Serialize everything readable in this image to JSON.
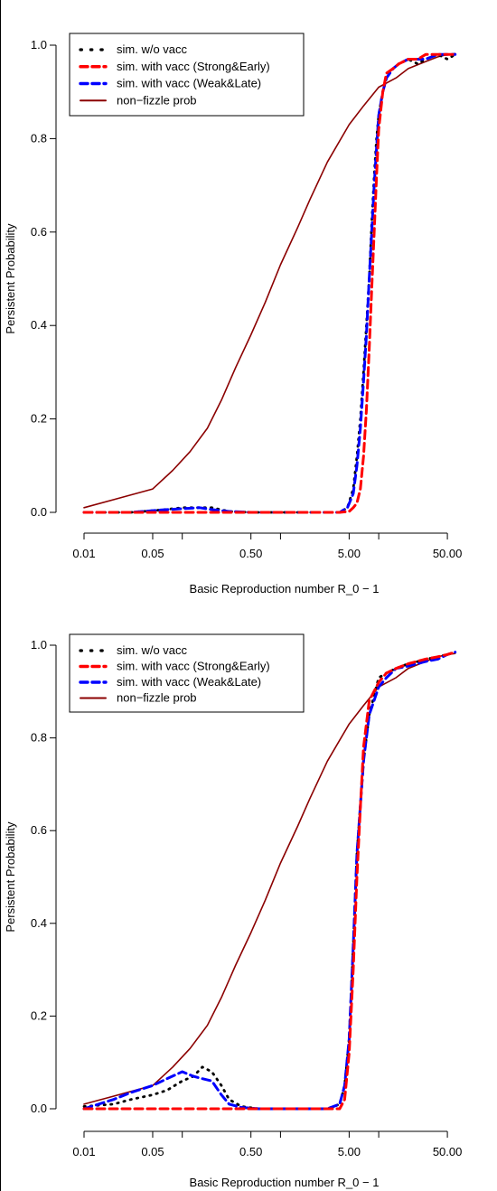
{
  "chart_data": [
    {
      "type": "line",
      "title": "",
      "xlabel": "Basic Reproduction number R_0 − 1",
      "ylabel": "Persistent Probability",
      "xscale": "log",
      "xlim": [
        0.01,
        65
      ],
      "ylim": [
        0,
        1
      ],
      "xticks": [
        0.01,
        0.05,
        0.5,
        5,
        50
      ],
      "xtick_labels": [
        "0.01",
        "0.05",
        "0.50",
        "5.00",
        "50.00"
      ],
      "yticks": [
        0,
        0.2,
        0.4,
        0.6,
        0.8,
        1.0
      ],
      "ytick_labels": [
        "0.0",
        "0.2",
        "0.4",
        "0.6",
        "0.8",
        "1.0"
      ],
      "legend_position": "top-left",
      "series": [
        {
          "name": "sim. w/o vacc",
          "style": "dotted",
          "color": "#000000",
          "x": [
            0.01,
            0.03,
            0.06,
            0.1,
            0.15,
            0.2,
            0.3,
            0.5,
            1,
            2,
            3,
            4,
            4.8,
            5.5,
            6,
            6.5,
            7,
            7.5,
            8,
            8.5,
            9,
            9.5,
            10,
            11,
            12,
            14,
            16,
            20,
            25,
            30,
            40,
            50,
            60
          ],
          "y": [
            0,
            0,
            0.005,
            0.01,
            0.01,
            0.01,
            0.002,
            0,
            0,
            0,
            0,
            0,
            0.01,
            0.05,
            0.12,
            0.2,
            0.3,
            0.4,
            0.5,
            0.62,
            0.72,
            0.8,
            0.85,
            0.9,
            0.93,
            0.95,
            0.96,
            0.97,
            0.96,
            0.97,
            0.98,
            0.97,
            0.98
          ]
        },
        {
          "name": "sim. with vacc (Strong&Early)",
          "style": "dashed",
          "color": "#ff0000",
          "x": [
            0.01,
            0.1,
            0.5,
            1,
            2,
            3,
            4,
            5,
            5.5,
            6,
            6.5,
            7,
            7.5,
            8,
            8.5,
            9,
            9.5,
            10,
            11,
            12,
            14,
            16,
            20,
            25,
            30,
            40,
            50,
            60
          ],
          "y": [
            0,
            0,
            0,
            0,
            0,
            0,
            0,
            0.002,
            0.01,
            0.02,
            0.05,
            0.12,
            0.22,
            0.35,
            0.48,
            0.6,
            0.72,
            0.82,
            0.9,
            0.94,
            0.95,
            0.96,
            0.97,
            0.97,
            0.98,
            0.98,
            0.98,
            0.98
          ]
        },
        {
          "name": "sim. with vacc (Weak&Late)",
          "style": "dashed",
          "color": "#0000ff",
          "x": [
            0.01,
            0.03,
            0.06,
            0.1,
            0.15,
            0.2,
            0.3,
            0.5,
            1,
            2,
            3,
            4,
            4.8,
            5.5,
            6,
            6.5,
            7,
            7.5,
            8,
            8.5,
            9,
            9.5,
            10,
            11,
            12,
            14,
            16,
            20,
            25,
            30,
            40,
            50,
            60
          ],
          "y": [
            0,
            0,
            0.005,
            0.008,
            0.01,
            0.006,
            0.002,
            0,
            0,
            0,
            0,
            0,
            0.01,
            0.04,
            0.1,
            0.18,
            0.28,
            0.38,
            0.5,
            0.6,
            0.7,
            0.78,
            0.85,
            0.9,
            0.93,
            0.95,
            0.96,
            0.97,
            0.97,
            0.97,
            0.98,
            0.98,
            0.98
          ]
        },
        {
          "name": "non−fizzle prob",
          "style": "solid",
          "color": "#8b0000",
          "x": [
            0.01,
            0.05,
            0.08,
            0.12,
            0.18,
            0.25,
            0.35,
            0.5,
            0.7,
            1,
            1.5,
            2,
            3,
            5,
            7,
            10,
            15,
            20,
            30,
            40,
            50,
            60
          ],
          "y": [
            0.01,
            0.05,
            0.09,
            0.13,
            0.18,
            0.24,
            0.31,
            0.38,
            0.45,
            0.53,
            0.61,
            0.67,
            0.75,
            0.83,
            0.87,
            0.91,
            0.93,
            0.95,
            0.965,
            0.975,
            0.98,
            0.982
          ]
        }
      ]
    },
    {
      "type": "line",
      "title": "",
      "xlabel": "Basic Reproduction number R_0 − 1",
      "ylabel": "Persistent Probability",
      "xscale": "log",
      "xlim": [
        0.01,
        65
      ],
      "ylim": [
        0,
        1
      ],
      "xticks": [
        0.01,
        0.05,
        0.5,
        5,
        50
      ],
      "xtick_labels": [
        "0.01",
        "0.05",
        "0.50",
        "5.00",
        "50.00"
      ],
      "yticks": [
        0,
        0.2,
        0.4,
        0.6,
        0.8,
        1.0
      ],
      "ytick_labels": [
        "0.0",
        "0.2",
        "0.4",
        "0.6",
        "0.8",
        "1.0"
      ],
      "legend_position": "top-left",
      "series": [
        {
          "name": "sim. w/o vacc",
          "style": "dotted",
          "color": "#000000",
          "x": [
            0.01,
            0.02,
            0.03,
            0.05,
            0.07,
            0.1,
            0.13,
            0.16,
            0.2,
            0.25,
            0.3,
            0.4,
            0.6,
            1,
            2,
            3,
            4,
            4.5,
            5,
            5.5,
            6,
            7,
            8,
            10,
            12,
            15,
            20,
            25,
            30,
            40,
            50,
            60
          ],
          "y": [
            0.005,
            0.01,
            0.02,
            0.03,
            0.04,
            0.06,
            0.07,
            0.09,
            0.08,
            0.05,
            0.02,
            0.005,
            0,
            0,
            0,
            0,
            0.01,
            0.05,
            0.15,
            0.35,
            0.55,
            0.75,
            0.85,
            0.93,
            0.94,
            0.95,
            0.96,
            0.965,
            0.97,
            0.975,
            0.98,
            0.985
          ]
        },
        {
          "name": "sim. with vacc (Strong&Early)",
          "style": "dashed",
          "color": "#ff0000",
          "x": [
            0.01,
            0.1,
            0.5,
            1,
            2,
            3,
            4,
            4.5,
            5,
            5.5,
            6,
            6.5,
            7,
            8,
            10,
            12,
            15,
            20,
            30,
            40,
            50,
            60
          ],
          "y": [
            0,
            0,
            0,
            0,
            0,
            0,
            0,
            0.02,
            0.12,
            0.3,
            0.5,
            0.65,
            0.78,
            0.88,
            0.92,
            0.94,
            0.95,
            0.96,
            0.97,
            0.975,
            0.98,
            0.985
          ]
        },
        {
          "name": "sim. with vacc (Weak&Late)",
          "style": "dashed",
          "color": "#0000ff",
          "x": [
            0.01,
            0.02,
            0.03,
            0.05,
            0.07,
            0.1,
            0.13,
            0.16,
            0.2,
            0.25,
            0.3,
            0.4,
            0.6,
            1,
            2,
            3,
            4,
            4.5,
            5,
            5.5,
            6,
            7,
            8,
            10,
            12,
            15,
            20,
            30,
            40,
            50,
            60
          ],
          "y": [
            0,
            0.02,
            0.035,
            0.05,
            0.065,
            0.08,
            0.07,
            0.065,
            0.06,
            0.03,
            0.01,
            0.003,
            0,
            0,
            0,
            0,
            0.01,
            0.05,
            0.15,
            0.35,
            0.55,
            0.75,
            0.85,
            0.91,
            0.93,
            0.95,
            0.955,
            0.965,
            0.97,
            0.98,
            0.985
          ]
        },
        {
          "name": "non−fizzle prob",
          "style": "solid",
          "color": "#8b0000",
          "x": [
            0.01,
            0.05,
            0.08,
            0.12,
            0.18,
            0.25,
            0.35,
            0.5,
            0.7,
            1,
            1.5,
            2,
            3,
            5,
            7,
            10,
            15,
            20,
            30,
            40,
            50,
            60
          ],
          "y": [
            0.01,
            0.05,
            0.09,
            0.13,
            0.18,
            0.24,
            0.31,
            0.38,
            0.45,
            0.53,
            0.61,
            0.67,
            0.75,
            0.83,
            0.87,
            0.91,
            0.93,
            0.95,
            0.965,
            0.975,
            0.98,
            0.982
          ]
        }
      ]
    }
  ]
}
